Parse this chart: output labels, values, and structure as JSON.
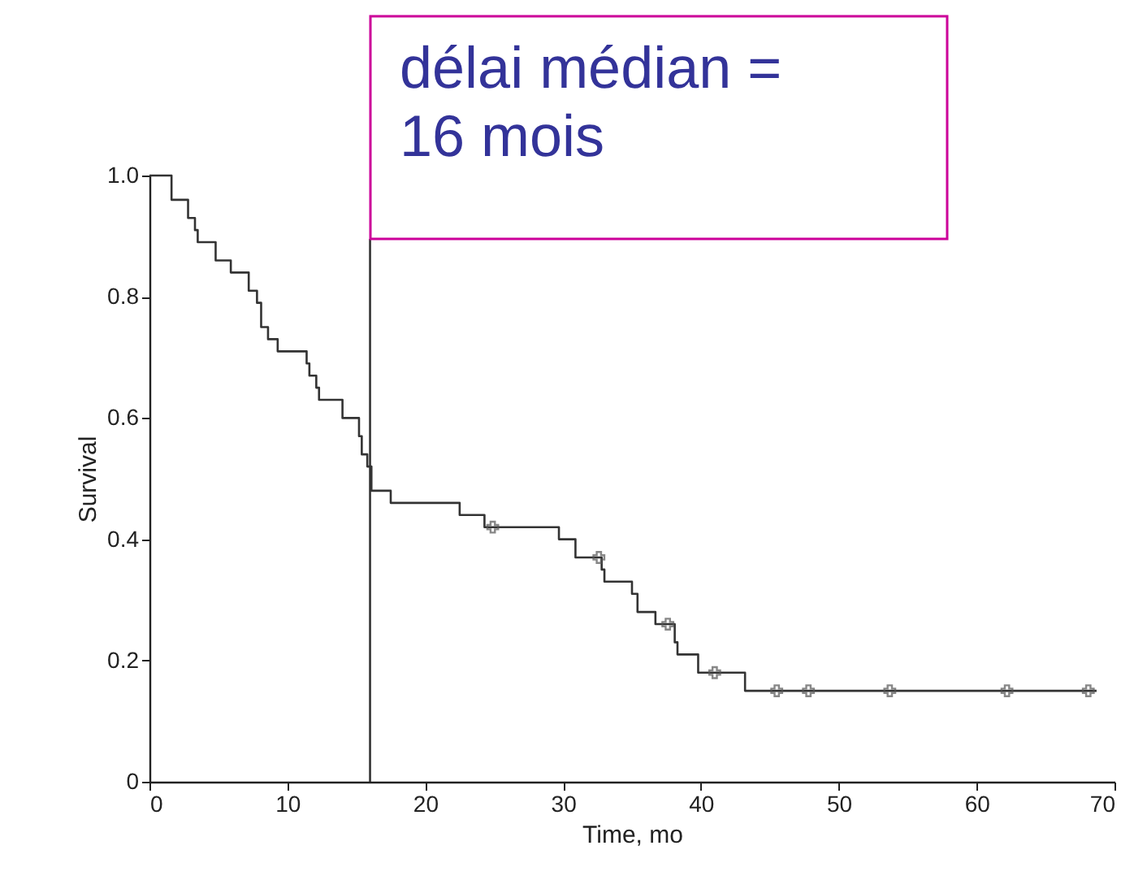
{
  "chart_data": {
    "type": "step",
    "xlabel": "Time, mo",
    "ylabel": "Survival",
    "annotations": [
      "délai médian =\n16 mois"
    ],
    "ref_lines": [
      {
        "axis": "x",
        "value": 16,
        "color": "#333333"
      }
    ],
    "series": [
      {
        "color": "#333333",
        "line_style": "solid",
        "x": [
          0,
          1.6,
          2.8,
          3.3,
          3.5,
          4.8,
          5.9,
          7.2,
          7.8,
          8.1,
          8.6,
          9.3,
          11.4,
          11.6,
          12.1,
          12.3,
          14.0,
          15.2,
          15.4,
          15.8,
          16.1,
          17.5,
          22.5,
          24.3,
          29.7,
          30.9,
          32.8,
          33.0,
          35.0,
          35.4,
          36.7,
          38.1,
          38.3,
          39.8,
          43.2,
          68.7
        ],
        "values": [
          1.0,
          0.96,
          0.93,
          0.91,
          0.89,
          0.86,
          0.84,
          0.81,
          0.79,
          0.75,
          0.73,
          0.71,
          0.69,
          0.67,
          0.65,
          0.63,
          0.6,
          0.57,
          0.54,
          0.52,
          0.48,
          0.46,
          0.44,
          0.42,
          0.4,
          0.37,
          0.35,
          0.33,
          0.31,
          0.28,
          0.26,
          0.23,
          0.21,
          0.18,
          0.15,
          0.15
        ]
      },
      {
        "type": "scatter",
        "color": "#555555",
        "marker": "cross",
        "x": [
          24.9,
          32.6,
          37.6,
          41.0,
          45.5,
          47.8,
          53.7,
          62.2,
          68.1
        ],
        "values": [
          0.42,
          0.37,
          0.26,
          0.18,
          0.15,
          0.15,
          0.15,
          0.15,
          0.15
        ]
      }
    ],
    "xlim": [
      0,
      70
    ],
    "xticks": [
      0,
      10,
      20,
      30,
      40,
      50,
      60,
      70
    ],
    "ylim": [
      0,
      1.0
    ],
    "yticks": [
      0,
      0.2,
      0.4,
      0.6,
      0.8,
      {
        "value": 1.0,
        "label": "1.0"
      }
    ],
    "grid": false
  }
}
